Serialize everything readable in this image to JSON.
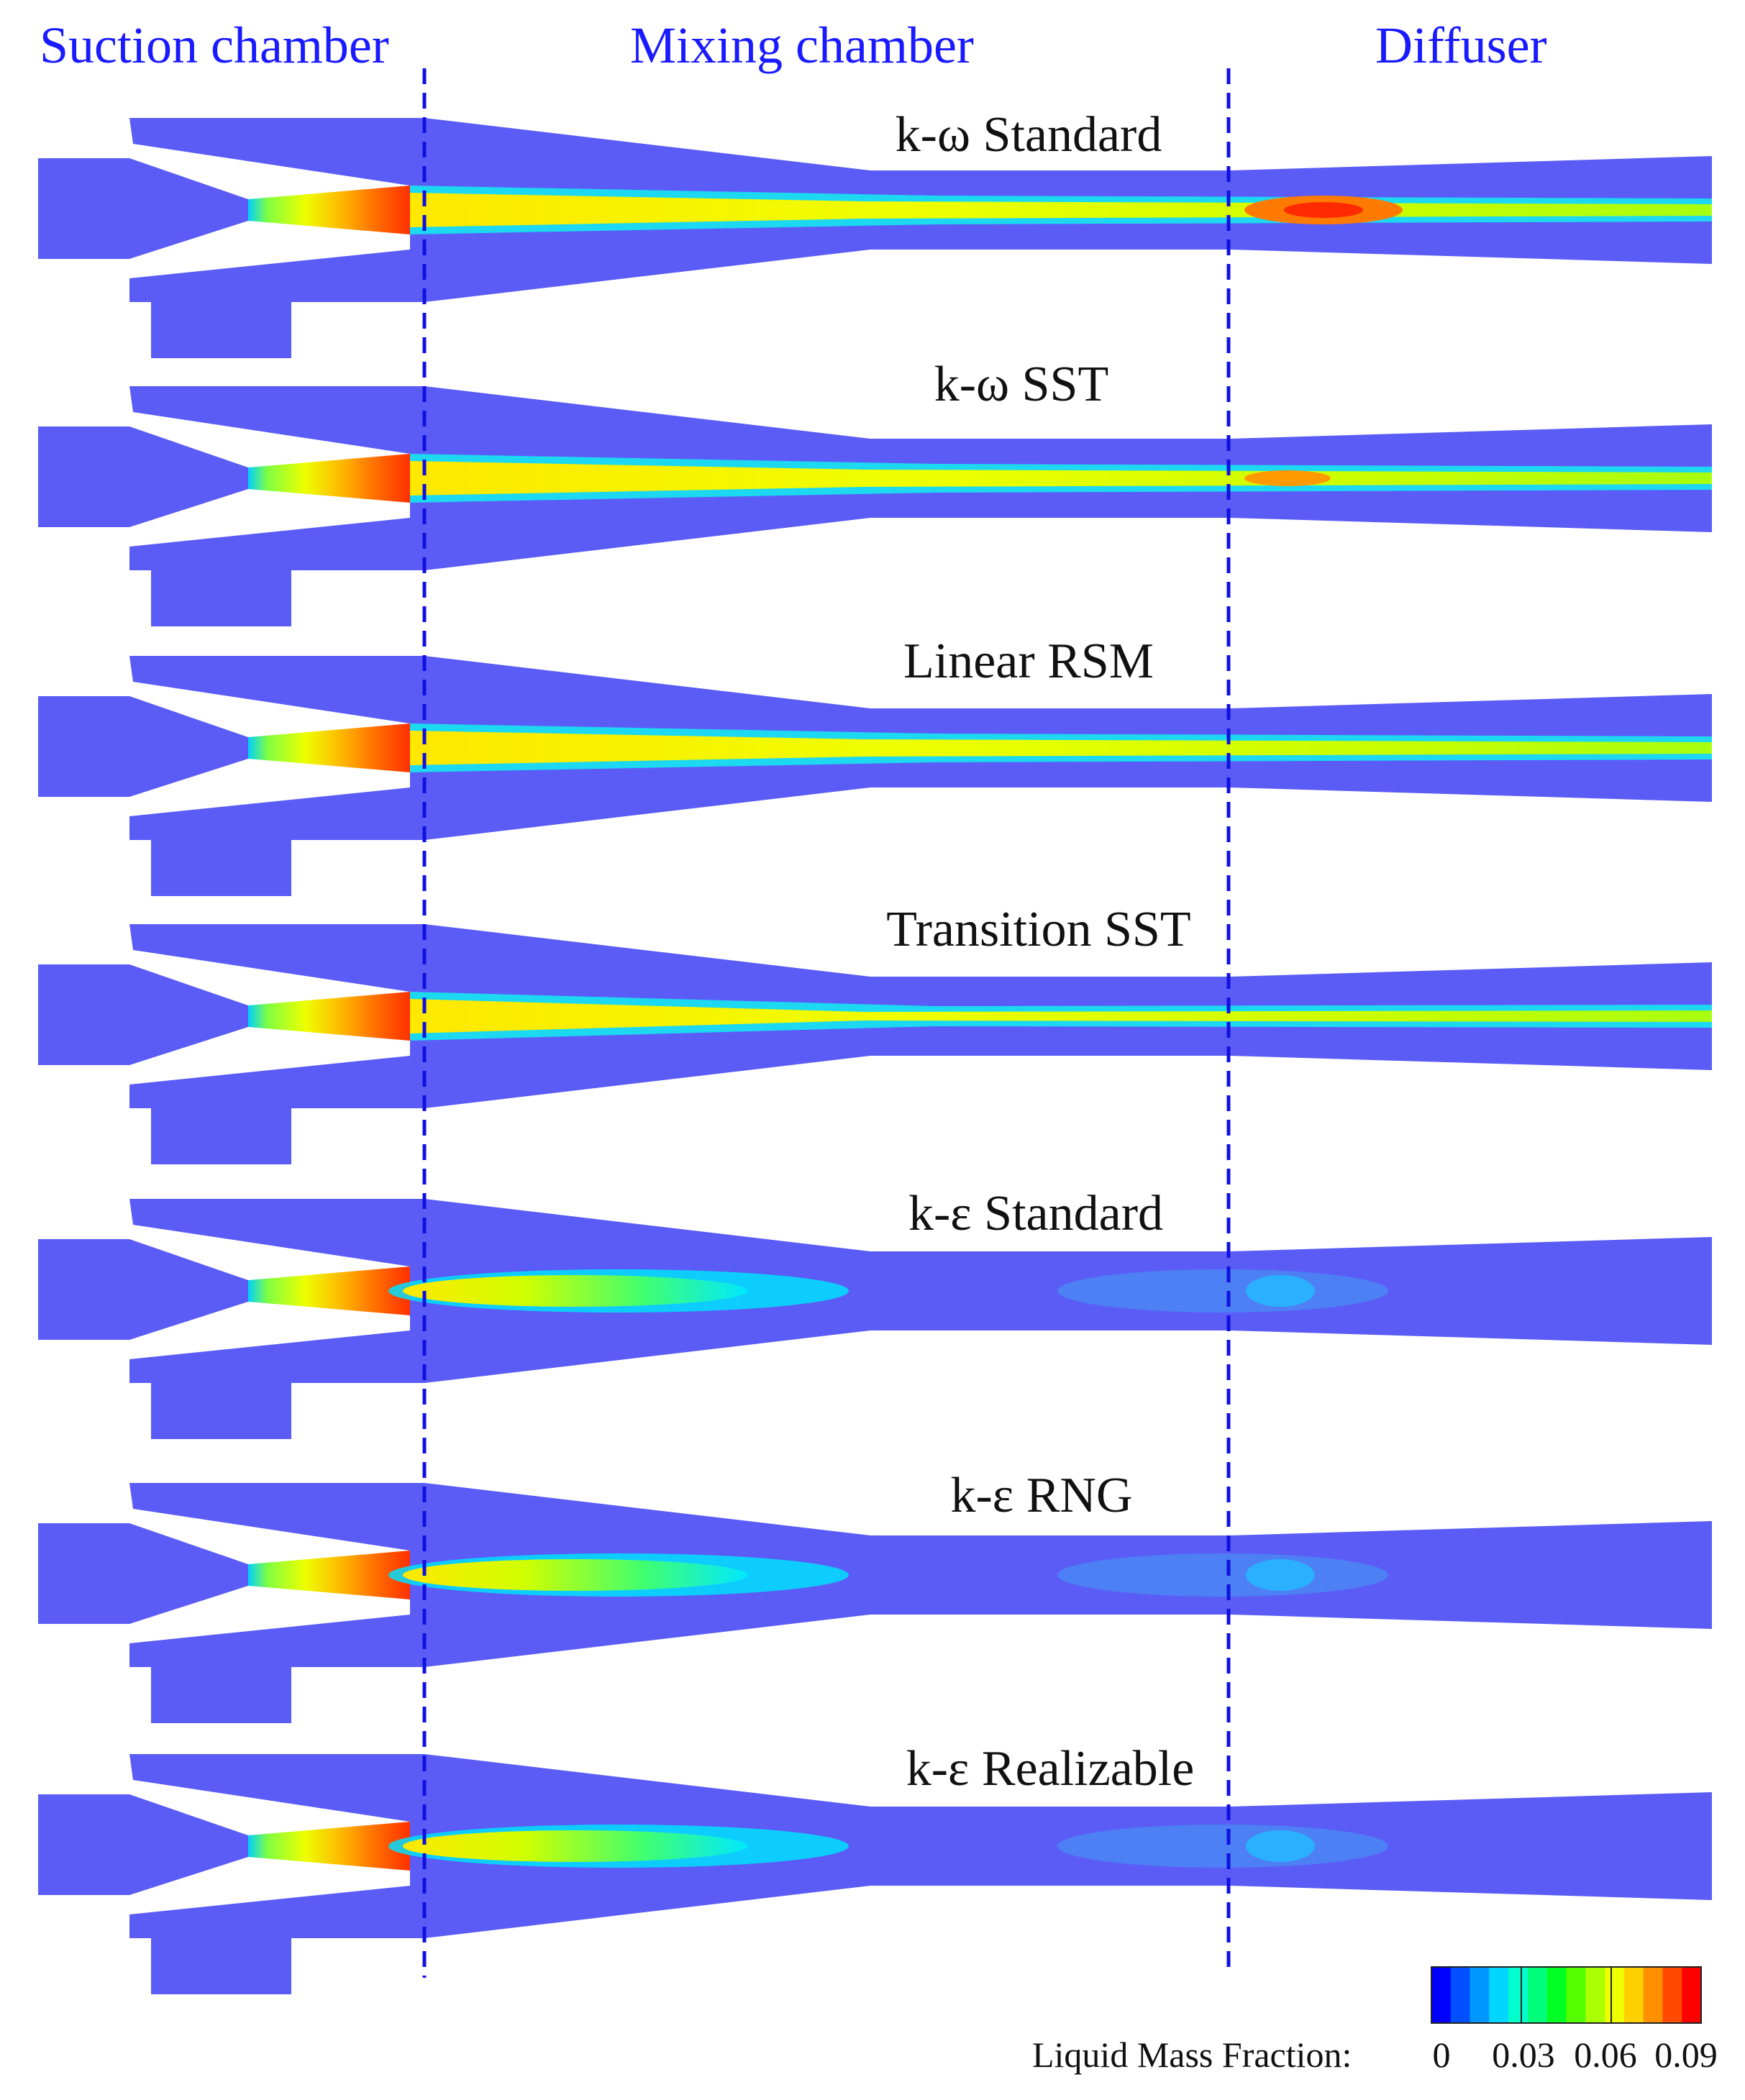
{
  "regions": [
    "Suction chamber",
    "Mixing chamber",
    "Diffuser"
  ],
  "models": [
    {
      "label": "k-ω Standard",
      "profile": "narrow-core",
      "diffuser_hotspot": "red"
    },
    {
      "label": "k-ω SST",
      "profile": "narrow-core",
      "diffuser_hotspot": "orange"
    },
    {
      "label": "Linear RSM",
      "profile": "narrow-core",
      "diffuser_hotspot": "none"
    },
    {
      "label": "Transition SST",
      "profile": "thin-core",
      "diffuser_hotspot": "none"
    },
    {
      "label": "k-ε Standard",
      "profile": "short-jet",
      "diffuser_hotspot": "blue-cloud"
    },
    {
      "label": "k-ε RNG",
      "profile": "short-jet",
      "diffuser_hotspot": "blue-cloud"
    },
    {
      "label": "k-ε Realizable",
      "profile": "short-jet",
      "diffuser_hotspot": "blue-cloud"
    }
  ],
  "colorbar": {
    "title": "Liquid Mass Fraction:",
    "ticks": [
      "0",
      "0.03",
      "0.06",
      "0.09"
    ],
    "min": 0,
    "max": 0.09,
    "colors": [
      "#0000ff",
      "#0050ff",
      "#0098ff",
      "#00d6ff",
      "#00ffcc",
      "#00ff7a",
      "#00ff22",
      "#55ff00",
      "#aaff00",
      "#eeff00",
      "#ffd000",
      "#ff9000",
      "#ff4a00",
      "#ff0000"
    ]
  },
  "colors": {
    "region_text": "#1a1aff",
    "divider": "#1010e0",
    "body_fill": "#5b5cf6"
  }
}
